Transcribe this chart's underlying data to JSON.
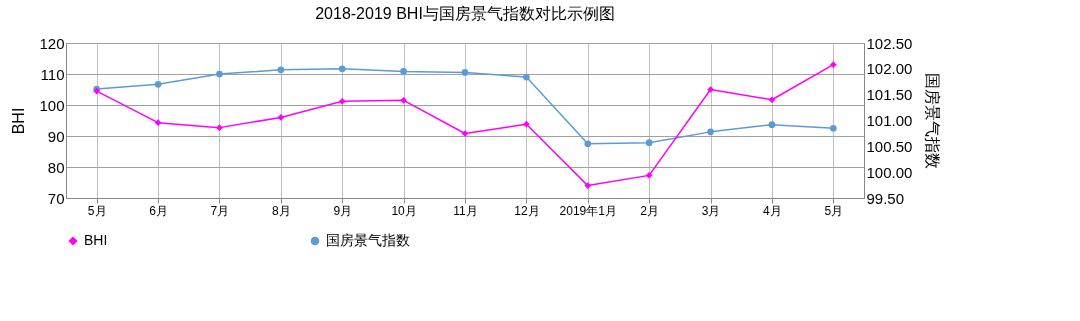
{
  "chart_data": {
    "type": "line",
    "title": "2018-2019 BHI与国房景气指数对比示例图",
    "ylabel": "BHI",
    "y2label": "国房景气指数",
    "categories": [
      "5月",
      "6月",
      "7月",
      "8月",
      "9月",
      "10月",
      "11月",
      "12月",
      "2019年1月",
      "2月",
      "3月",
      "4月",
      "5月"
    ],
    "series": [
      {
        "name": "BHI",
        "color": "#ff00ff",
        "marker": "diamond",
        "values": [
          104.5,
          94.3,
          92.7,
          96,
          101.2,
          101.5,
          90.8,
          93.8,
          74,
          77.3,
          105,
          101.7,
          113
        ]
      },
      {
        "name": "国房景气指数",
        "color": "#5b9bd5",
        "marker": "circle",
        "axis": "y2",
        "values": [
          101.61,
          101.7,
          101.9,
          101.98,
          102.0,
          101.95,
          101.93,
          101.84,
          100.55,
          100.57,
          100.78,
          100.92,
          100.85
        ]
      }
    ],
    "ylim": [
      70,
      120
    ],
    "yticks": [
      70,
      80,
      90,
      100,
      110,
      120
    ],
    "y2lim": [
      99.5,
      102.5
    ],
    "y2ticks": [
      {
        "value": 99.5,
        "label": "99.50"
      },
      {
        "value": 100,
        "label": "100.00"
      },
      {
        "value": 100.5,
        "label": "100.50"
      },
      {
        "value": 101,
        "label": "101.00"
      },
      {
        "value": 101.5,
        "label": "101.50"
      },
      {
        "value": 102,
        "label": "102.00"
      },
      {
        "value": 102.5,
        "label": "102.50"
      }
    ],
    "grid": true,
    "legend": "bottom"
  }
}
